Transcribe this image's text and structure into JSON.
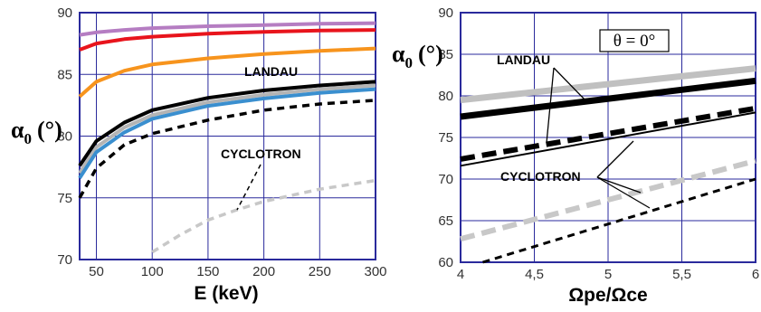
{
  "chart_data": [
    {
      "type": "line",
      "xlabel": "E (keV)",
      "ylabel_symbol": "α",
      "ylabel_sub": "0",
      "ylabel_unit": "(°)",
      "xlim": [
        35,
        300
      ],
      "ylim": [
        70,
        90
      ],
      "xticks": [
        "50",
        "100",
        "150",
        "200",
        "250",
        "300"
      ],
      "yticks": [
        "70",
        "75",
        "80",
        "85",
        "90"
      ],
      "grid": true,
      "annotations": [
        {
          "text": "LANDAU"
        },
        {
          "text": "CYCLOTRON"
        }
      ],
      "series": [
        {
          "color": "#b57dc2",
          "style": "solid",
          "x": [
            35,
            50,
            75,
            100,
            150,
            200,
            250,
            300
          ],
          "y": [
            88.2,
            88.4,
            88.6,
            88.75,
            88.9,
            89.0,
            89.1,
            89.15
          ]
        },
        {
          "color": "#e8141c",
          "style": "solid",
          "x": [
            35,
            50,
            75,
            100,
            150,
            200,
            250,
            300
          ],
          "y": [
            87.0,
            87.5,
            87.85,
            88.05,
            88.3,
            88.45,
            88.55,
            88.6
          ]
        },
        {
          "color": "#f7941d",
          "style": "solid",
          "x": [
            35,
            50,
            75,
            100,
            150,
            200,
            250,
            300
          ],
          "y": [
            83.2,
            84.4,
            85.3,
            85.8,
            86.3,
            86.65,
            86.9,
            87.1
          ]
        },
        {
          "color": "#000000",
          "style": "solid",
          "x": [
            35,
            50,
            75,
            100,
            150,
            200,
            250,
            300
          ],
          "y": [
            77.6,
            79.6,
            81.1,
            82.1,
            83.1,
            83.7,
            84.1,
            84.4
          ]
        },
        {
          "color": "#b4b4b4",
          "style": "solid",
          "x": [
            35,
            50,
            75,
            100,
            150,
            200,
            250,
            300
          ],
          "y": [
            77.0,
            79.1,
            80.7,
            81.7,
            82.75,
            83.35,
            83.8,
            84.1
          ]
        },
        {
          "color": "#3a8fcf",
          "style": "solid",
          "x": [
            35,
            50,
            75,
            100,
            150,
            200,
            250,
            300
          ],
          "y": [
            76.6,
            78.7,
            80.3,
            81.4,
            82.45,
            83.05,
            83.5,
            83.8
          ]
        },
        {
          "color": "#000000",
          "style": "dashed",
          "x": [
            35,
            50,
            75,
            100,
            150,
            200,
            250,
            300
          ],
          "y": [
            75.0,
            77.4,
            79.3,
            80.2,
            81.3,
            82.1,
            82.6,
            82.9
          ]
        },
        {
          "color": "#c8c8c8",
          "style": "dashed",
          "x": [
            100,
            125,
            150,
            175,
            200,
            250,
            300
          ],
          "y": [
            70.6,
            72.0,
            73.2,
            74.0,
            74.7,
            75.7,
            76.4
          ]
        }
      ]
    },
    {
      "type": "line",
      "xlabel": "Ωpe/Ωce",
      "ylabel_symbol": "α",
      "ylabel_sub": "0",
      "ylabel_unit": "(°)",
      "xlim": [
        4,
        6
      ],
      "ylim": [
        60,
        90
      ],
      "xticks": [
        "4",
        "4,5",
        "5",
        "5,5",
        "6"
      ],
      "yticks": [
        "60",
        "65",
        "70",
        "75",
        "80",
        "85",
        "90"
      ],
      "grid": true,
      "boxlabel": "θ = 0°",
      "annotations": [
        {
          "text": "LANDAU"
        },
        {
          "text": "CYCLOTRON"
        }
      ],
      "series": [
        {
          "color": "#c0c0c0",
          "style": "solid-thick",
          "x": [
            4,
            6
          ],
          "y": [
            79.5,
            83.3
          ]
        },
        {
          "color": "#000000",
          "style": "solid-thick",
          "x": [
            4,
            6
          ],
          "y": [
            77.5,
            81.8
          ]
        },
        {
          "color": "#000000",
          "style": "dashed-thick",
          "x": [
            4,
            6
          ],
          "y": [
            72.4,
            78.5
          ]
        },
        {
          "color": "#000000",
          "style": "solid",
          "x": [
            4,
            6
          ],
          "y": [
            71.6,
            78.0
          ]
        },
        {
          "color": "#c8c8c8",
          "style": "dashed-thick",
          "x": [
            4,
            6
          ],
          "y": [
            62.8,
            72.2
          ]
        },
        {
          "color": "#000000",
          "style": "dashed",
          "x": [
            4.15,
            6
          ],
          "y": [
            60.0,
            70.0
          ]
        }
      ]
    }
  ]
}
